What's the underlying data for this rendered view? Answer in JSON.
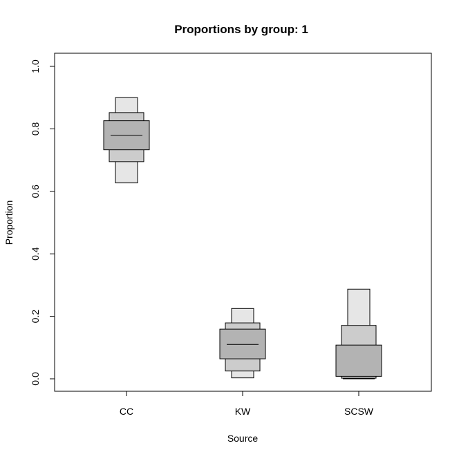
{
  "chart_data": {
    "type": "boxplot",
    "title": "Proportions by group: 1",
    "xlabel": "Source",
    "ylabel": "Proportion",
    "ylim": [
      0.0,
      1.0
    ],
    "yticks": [
      "0.0",
      "0.2",
      "0.4",
      "0.6",
      "0.8",
      "1.0"
    ],
    "categories": [
      "CC",
      "KW",
      "SCSW"
    ],
    "intervals": [
      {
        "category": "CC",
        "bands": [
          {
            "level": "outer",
            "low": 0.627,
            "high": 0.9
          },
          {
            "level": "middle",
            "low": 0.695,
            "high": 0.852
          },
          {
            "level": "inner",
            "low": 0.733,
            "high": 0.826
          }
        ],
        "median": 0.78
      },
      {
        "category": "KW",
        "bands": [
          {
            "level": "outer",
            "low": 0.003,
            "high": 0.225
          },
          {
            "level": "middle",
            "low": 0.025,
            "high": 0.179
          },
          {
            "level": "inner",
            "low": 0.064,
            "high": 0.159
          }
        ],
        "median": 0.11
      },
      {
        "category": "SCSW",
        "bands": [
          {
            "level": "outer",
            "low": 0.0,
            "high": 0.287
          },
          {
            "level": "middle",
            "low": 0.002,
            "high": 0.171
          },
          {
            "level": "inner",
            "low": 0.008,
            "high": 0.108
          }
        ],
        "median": 0.0
      }
    ],
    "colors": {
      "outer": "#e6e6e6",
      "middle": "#cccccc",
      "inner": "#b3b3b3"
    },
    "grid": false
  }
}
